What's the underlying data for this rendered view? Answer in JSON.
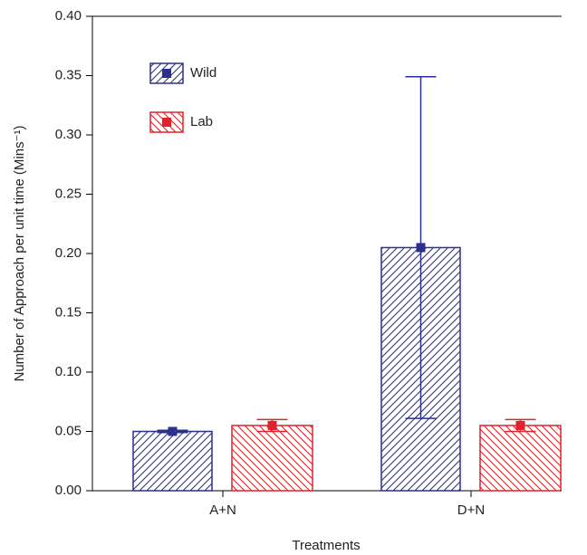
{
  "chart_data": {
    "type": "bar",
    "x_label": "Treatments",
    "y_label": "Number of Approach per unit time (Mins⁻¹)",
    "categories": [
      "A+N",
      "D+N"
    ],
    "series": [
      {
        "name": "Wild",
        "color": "#2b2f8f",
        "hatch": "forward",
        "values": [
          0.05,
          0.205
        ],
        "errors": [
          0.001,
          0.144
        ]
      },
      {
        "name": "Lab",
        "color": "#e2222a",
        "hatch": "backward",
        "values": [
          0.055,
          0.055
        ],
        "errors": [
          0.005,
          0.005
        ]
      }
    ],
    "ylim": [
      0,
      0.4
    ],
    "yticks": [
      {
        "value": 0,
        "label": "0.00"
      },
      {
        "value": 0.05,
        "label": "0.05"
      },
      {
        "value": 0.1,
        "label": "0.10"
      },
      {
        "value": 0.15,
        "label": "0.15"
      },
      {
        "value": 0.2,
        "label": "0.20"
      },
      {
        "value": 0.25,
        "label": "0.25"
      },
      {
        "value": 0.3,
        "label": "0.30"
      },
      {
        "value": 0.35,
        "label": "0.35"
      },
      {
        "value": 0.4,
        "label": "0.40"
      }
    ],
    "legend": "upper left"
  }
}
